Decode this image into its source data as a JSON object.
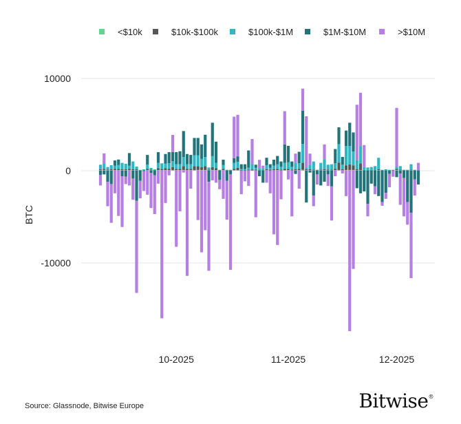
{
  "chart_data": {
    "type": "bar",
    "stacked": true,
    "ylabel": "BTC",
    "ylim": [
      -18000,
      11000
    ],
    "yticks": [
      "10000",
      "0",
      "-10000"
    ],
    "ytick_values": [
      10000,
      0,
      -10000
    ],
    "xticks": [
      "10-2025",
      "11-2025",
      "12-2025"
    ],
    "xtick_dates": [
      "2025-10-01",
      "2025-11-01",
      "2025-12-01"
    ],
    "grid": "horizontal",
    "legend_position": "top",
    "dates": [
      "2025-09-10",
      "2025-09-11",
      "2025-09-12",
      "2025-09-13",
      "2025-09-14",
      "2025-09-15",
      "2025-09-16",
      "2025-09-17",
      "2025-09-18",
      "2025-09-19",
      "2025-09-20",
      "2025-09-21",
      "2025-09-22",
      "2025-09-23",
      "2025-09-24",
      "2025-09-25",
      "2025-09-26",
      "2025-09-27",
      "2025-09-28",
      "2025-09-29",
      "2025-09-30",
      "2025-10-01",
      "2025-10-02",
      "2025-10-03",
      "2025-10-04",
      "2025-10-05",
      "2025-10-06",
      "2025-10-07",
      "2025-10-08",
      "2025-10-09",
      "2025-10-10",
      "2025-10-11",
      "2025-10-12",
      "2025-10-13",
      "2025-10-14",
      "2025-10-15",
      "2025-10-16",
      "2025-10-17",
      "2025-10-18",
      "2025-10-19",
      "2025-10-20",
      "2025-10-21",
      "2025-10-22",
      "2025-10-23",
      "2025-10-24",
      "2025-10-25",
      "2025-10-26",
      "2025-10-27",
      "2025-10-28",
      "2025-10-29",
      "2025-10-30",
      "2025-10-31",
      "2025-11-01",
      "2025-11-02",
      "2025-11-03",
      "2025-11-04",
      "2025-11-05",
      "2025-11-06",
      "2025-11-07",
      "2025-11-08",
      "2025-11-09",
      "2025-11-10",
      "2025-11-11",
      "2025-11-12",
      "2025-11-13",
      "2025-11-14",
      "2025-11-15",
      "2025-11-16",
      "2025-11-17",
      "2025-11-18",
      "2025-11-19",
      "2025-11-20",
      "2025-11-21",
      "2025-11-22",
      "2025-11-23",
      "2025-11-24",
      "2025-11-25",
      "2025-11-26",
      "2025-11-27",
      "2025-11-28",
      "2025-11-29",
      "2025-11-30",
      "2025-12-01",
      "2025-12-02",
      "2025-12-03",
      "2025-12-04",
      "2025-12-05",
      "2025-12-06",
      "2025-12-07"
    ],
    "series": [
      {
        "name": "<$10k",
        "color": "#5fd88f",
        "values": [
          60,
          60,
          50,
          50,
          60,
          60,
          50,
          50,
          60,
          50,
          50,
          30,
          30,
          60,
          40,
          30,
          60,
          60,
          60,
          60,
          80,
          60,
          60,
          80,
          60,
          60,
          80,
          80,
          80,
          80,
          40,
          80,
          60,
          20,
          60,
          20,
          20,
          60,
          60,
          30,
          30,
          40,
          40,
          40,
          30,
          30,
          50,
          30,
          50,
          60,
          40,
          60,
          60,
          40,
          50,
          60,
          100,
          50,
          50,
          40,
          20,
          40,
          50,
          40,
          40,
          60,
          80,
          50,
          80,
          80,
          80,
          50,
          50,
          30,
          30,
          30,
          30,
          50,
          20,
          20,
          20,
          20,
          60,
          40,
          20,
          20,
          40,
          20,
          20
        ]
      },
      {
        "name": "$10k-$100k",
        "color": "#555759",
        "values": [
          100,
          120,
          80,
          100,
          150,
          150,
          120,
          100,
          150,
          100,
          100,
          40,
          40,
          150,
          80,
          50,
          200,
          120,
          200,
          150,
          300,
          150,
          150,
          400,
          150,
          150,
          400,
          400,
          300,
          400,
          80,
          300,
          200,
          30,
          150,
          30,
          30,
          150,
          250,
          50,
          50,
          80,
          100,
          80,
          50,
          50,
          100,
          80,
          100,
          150,
          80,
          150,
          150,
          80,
          100,
          150,
          750,
          100,
          100,
          80,
          30,
          80,
          100,
          80,
          80,
          150,
          800,
          100,
          500,
          600,
          500,
          100,
          750,
          50,
          50,
          50,
          70,
          100,
          30,
          30,
          30,
          30,
          150,
          80,
          30,
          30,
          80,
          30,
          30
        ]
      },
      {
        "name": "$100k-$1M",
        "color": "#2fb8c4",
        "values": [
          490,
          600,
          270,
          450,
          350,
          400,
          680,
          600,
          350,
          850,
          300,
          30,
          80,
          450,
          180,
          70,
          600,
          620,
          500,
          600,
          650,
          500,
          500,
          1000,
          500,
          500,
          1200,
          1200,
          900,
          1000,
          230,
          1200,
          600,
          50,
          400,
          50,
          50,
          650,
          650,
          100,
          100,
          200,
          600,
          200,
          200,
          170,
          450,
          200,
          400,
          500,
          300,
          640,
          700,
          300,
          700,
          600,
          2050,
          150,
          500,
          880,
          50,
          730,
          1100,
          530,
          580,
          600,
          2000,
          500,
          2100,
          2000,
          1500,
          1000,
          1850,
          300,
          270,
          320,
          400,
          1250,
          50,
          100,
          50,
          50,
          200,
          380,
          50,
          50,
          580,
          50,
          0
        ]
      },
      {
        "name": "$1M-$10M",
        "color": "#22737a",
        "values": [
          -450,
          -400,
          -1200,
          -1450,
          550,
          600,
          -600,
          -650,
          1350,
          -850,
          -3250,
          -1100,
          -50,
          1050,
          -250,
          -500,
          1150,
          0,
          1050,
          1200,
          1000,
          1300,
          1400,
          2820,
          1100,
          1000,
          1870,
          1870,
          1570,
          2420,
          -1200,
          3620,
          2290,
          -1000,
          590,
          -1100,
          -400,
          500,
          600,
          520,
          520,
          1880,
          0,
          330,
          -600,
          -1300,
          800,
          390,
          650,
          890,
          580,
          2000,
          1790,
          580,
          -350,
          1240,
          3600,
          -3450,
          -200,
          -2700,
          -400,
          -1600,
          -1200,
          -400,
          -1700,
          1540,
          1820,
          850,
          1670,
          2520,
          2070,
          -1900,
          -2450,
          -2250,
          -3600,
          -1400,
          -1700,
          -2750,
          -3400,
          -2400,
          -350,
          0,
          -700,
          -300,
          -800,
          -3400,
          -4550,
          -950,
          -1500
        ]
      },
      {
        "name": ">$10M",
        "color": "#b57fe3",
        "values": [
          -1150,
          1100,
          -2650,
          -4200,
          -2450,
          -4900,
          -5500,
          -800,
          -1600,
          -2300,
          -10000,
          -1900,
          -2150,
          -2600,
          -3800,
          -4200,
          -1400,
          -16000,
          -3500,
          -500,
          1850,
          -8250,
          -4400,
          -200,
          -11400,
          -1950,
          0,
          -5350,
          -8850,
          -6450,
          -9650,
          -1050,
          -1300,
          -1000,
          -3050,
          -4200,
          -10350,
          4500,
          4500,
          -2550,
          -1150,
          -1650,
          2700,
          -5050,
          900,
          300,
          -1300,
          -2450,
          -6900,
          -8050,
          -3100,
          3600,
          -950,
          -4950,
          1000,
          -1950,
          2400,
          5600,
          1200,
          -1150,
          -1100,
          0,
          1600,
          -1250,
          -3700,
          -600,
          0,
          -300,
          -2750,
          -17400,
          -10650,
          6000,
          5800,
          2400,
          -1350,
          0,
          -850,
          0,
          -400,
          -650,
          -1450,
          -650,
          6400,
          -3400,
          -4150,
          -2450,
          -7100,
          -1750,
          800
        ]
      }
    ]
  },
  "footer": {
    "source": "Source: Glassnode, Bitwise Europe",
    "logo_text": "Bitwise",
    "logo_mark": "®"
  }
}
